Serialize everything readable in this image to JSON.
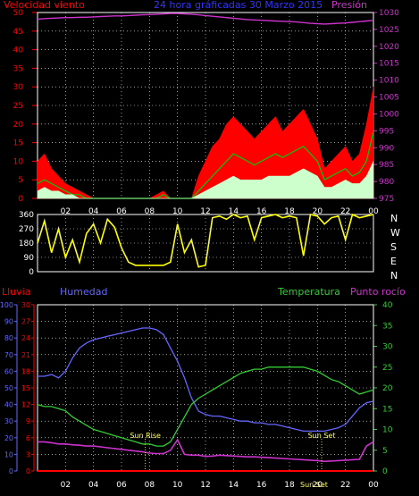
{
  "colors": {
    "wind": "#ff0000",
    "gust": "#ff0000",
    "wind_avg": "#ffffff",
    "wind_green": "#00cc00",
    "pressure": "#cc33cc",
    "title": "#3333ff",
    "winddir": "#ffff00",
    "rain": "#ff0000",
    "humidity": "#6666ff",
    "temperature": "#33cc33",
    "dewpoint": "#cc33cc",
    "axis": "#ffffff",
    "grid": "#ffffff",
    "sun": "#ffff66"
  },
  "chart_data": [
    {
      "type": "line",
      "title": "24 hora gráficadas  30 Marzo 2015",
      "left_label": "Velocidad viento",
      "right_label": "Presión",
      "x_ticks": [
        "02",
        "04",
        "06",
        "08",
        "10",
        "12",
        "14",
        "16",
        "18",
        "20",
        "22",
        "00"
      ],
      "ylim_left": [
        0,
        50
      ],
      "ylim_right": [
        975,
        1030
      ],
      "yticks_left": [
        "0",
        "5",
        "10",
        "15",
        "20",
        "25",
        "30",
        "35",
        "40",
        "45",
        "50"
      ],
      "yticks_right": [
        "975",
        "980",
        "985",
        "990",
        "995",
        "1000",
        "1005",
        "1010",
        "1015",
        "1020",
        "1025",
        "1030"
      ],
      "hours": [
        0,
        0.5,
        1,
        1.5,
        2,
        2.5,
        3,
        3.5,
        4,
        4.5,
        5,
        5.5,
        6,
        6.5,
        7,
        7.5,
        8,
        8.5,
        9,
        9.5,
        10,
        10.5,
        11,
        11.5,
        12,
        12.5,
        13,
        13.5,
        14,
        14.5,
        15,
        15.5,
        16,
        16.5,
        17,
        17.5,
        18,
        18.5,
        19,
        19.5,
        20,
        20.5,
        21,
        21.5,
        22,
        22.5,
        23,
        23.5,
        24
      ],
      "series": [
        {
          "name": "Racha",
          "values": [
            10,
            12,
            8,
            6,
            4,
            3,
            2,
            1,
            0,
            0,
            0,
            0,
            0,
            0,
            0,
            0,
            0,
            1,
            2,
            0,
            0,
            0,
            0,
            6,
            10,
            14,
            16,
            20,
            22,
            20,
            18,
            16,
            18,
            20,
            22,
            18,
            20,
            22,
            24,
            20,
            16,
            8,
            10,
            12,
            14,
            10,
            12,
            20,
            30
          ]
        },
        {
          "name": "Velocidad",
          "values": [
            4,
            5,
            4,
            3,
            2,
            1,
            1,
            0,
            0,
            0,
            0,
            0,
            0,
            0,
            0,
            0,
            0,
            0,
            1,
            0,
            0,
            0,
            0,
            2,
            4,
            6,
            8,
            10,
            12,
            11,
            10,
            9,
            10,
            11,
            12,
            11,
            12,
            13,
            14,
            12,
            10,
            5,
            6,
            7,
            8,
            6,
            7,
            10,
            18
          ]
        },
        {
          "name": "Media",
          "values": [
            2,
            3,
            2,
            2,
            1,
            1,
            0,
            0,
            0,
            0,
            0,
            0,
            0,
            0,
            0,
            0,
            0,
            0,
            0,
            0,
            0,
            0,
            0,
            1,
            2,
            3,
            4,
            5,
            6,
            5,
            5,
            5,
            5,
            6,
            6,
            6,
            6,
            7,
            8,
            7,
            6,
            3,
            3,
            4,
            5,
            4,
            4,
            6,
            10
          ]
        },
        {
          "name": "Presión",
          "values": [
            1028,
            1028.2,
            1028.3,
            1028.4,
            1028.5,
            1028.5,
            1028.6,
            1028.6,
            1028.7,
            1028.8,
            1028.9,
            1029,
            1029,
            1029.1,
            1029.2,
            1029.3,
            1029.4,
            1029.5,
            1029.6,
            1029.7,
            1029.7,
            1029.6,
            1029.5,
            1029.3,
            1029.1,
            1028.9,
            1028.7,
            1028.5,
            1028.3,
            1028.1,
            1027.9,
            1027.8,
            1027.7,
            1027.6,
            1027.5,
            1027.4,
            1027.3,
            1027.2,
            1027.0,
            1026.8,
            1026.7,
            1026.6,
            1026.7,
            1026.8,
            1026.9,
            1027.1,
            1027.3,
            1027.5,
            1027.7
          ]
        }
      ]
    },
    {
      "type": "line",
      "title": "",
      "left_ticks": [
        "0",
        "90",
        "180",
        "270",
        "360"
      ],
      "right_labels": [
        "N",
        "W",
        "S",
        "E",
        "N"
      ],
      "ylim": [
        0,
        360
      ],
      "hours": [
        0,
        0.5,
        1,
        1.5,
        2,
        2.5,
        3,
        3.5,
        4,
        4.5,
        5,
        5.5,
        6,
        6.5,
        7,
        7.5,
        8,
        8.5,
        9,
        9.5,
        10,
        10.5,
        11,
        11.5,
        12,
        12.5,
        13,
        13.5,
        14,
        14.5,
        15,
        15.5,
        16,
        16.5,
        17,
        17.5,
        18,
        18.5,
        19,
        19.5,
        20,
        20.5,
        21,
        21.5,
        22,
        22.5,
        23,
        23.5,
        24
      ],
      "series": [
        {
          "name": "Dirección",
          "values": [
            180,
            320,
            120,
            270,
            90,
            200,
            60,
            240,
            300,
            180,
            330,
            280,
            150,
            60,
            40,
            40,
            40,
            40,
            40,
            60,
            300,
            120,
            200,
            30,
            40,
            340,
            350,
            330,
            360,
            340,
            350,
            200,
            340,
            350,
            360,
            340,
            350,
            340,
            100,
            360,
            350,
            300,
            340,
            350,
            200,
            360,
            340,
            350,
            360
          ]
        }
      ]
    },
    {
      "type": "line",
      "legend": [
        "Lluvia",
        "Humedad",
        "Temperatura",
        "Punto rocío"
      ],
      "ylim_humidity": [
        0,
        100
      ],
      "ylim_rain": [
        0,
        30
      ],
      "ylim_temp": [
        0,
        40
      ],
      "yticks_humidity": [
        "0",
        "10",
        "20",
        "30",
        "40",
        "50",
        "60",
        "70",
        "80",
        "90",
        "100"
      ],
      "yticks_rain": [
        "0",
        "3",
        "6",
        "9",
        "12",
        "15",
        "18",
        "21",
        "24",
        "27",
        "30"
      ],
      "yticks_temp": [
        "0",
        "5",
        "10",
        "15",
        "20",
        "25",
        "30",
        "35",
        "40"
      ],
      "x_ticks": [
        "02",
        "04",
        "06",
        "08",
        "10",
        "12",
        "14",
        "16",
        "18",
        "20",
        "22",
        "00"
      ],
      "annotations": [
        {
          "text": "Sun Rise",
          "hour": 7.7,
          "value_temp": 8
        },
        {
          "text": "Sun Set",
          "hour": 20.3,
          "value_temp": 8
        }
      ],
      "bottom_label": "Sun Set",
      "hours": [
        0,
        0.5,
        1,
        1.5,
        2,
        2.5,
        3,
        3.5,
        4,
        4.5,
        5,
        5.5,
        6,
        6.5,
        7,
        7.5,
        8,
        8.5,
        9,
        9.5,
        10,
        10.5,
        11,
        11.5,
        12,
        12.5,
        13,
        13.5,
        14,
        14.5,
        15,
        15.5,
        16,
        16.5,
        17,
        17.5,
        18,
        18.5,
        19,
        19.5,
        20,
        20.5,
        21,
        21.5,
        22,
        22.5,
        23,
        23.5,
        24
      ],
      "series": [
        {
          "name": "Lluvia",
          "values": [
            0,
            0,
            0,
            0,
            0,
            0,
            0,
            0,
            0,
            0,
            0,
            0,
            0,
            0,
            0,
            0,
            0,
            0,
            0,
            0,
            0,
            0,
            0,
            0,
            0,
            0,
            0,
            0,
            0,
            0,
            0,
            0,
            0,
            0,
            0,
            0,
            0,
            0,
            0,
            0,
            0,
            0,
            0,
            0,
            0,
            0,
            0,
            0,
            0
          ]
        },
        {
          "name": "Humedad",
          "values": [
            57,
            57,
            58,
            56,
            60,
            68,
            74,
            77,
            79,
            80,
            81,
            82,
            83,
            84,
            85,
            86,
            86,
            85,
            82,
            74,
            66,
            56,
            44,
            36,
            34,
            33,
            33,
            32,
            31,
            30,
            30,
            29,
            29,
            28,
            28,
            27,
            26,
            25,
            24,
            24,
            24,
            24,
            25,
            26,
            28,
            33,
            38,
            41,
            42
          ]
        },
        {
          "name": "Temperatura",
          "values": [
            16,
            15.5,
            15.5,
            15,
            14.5,
            13,
            12,
            11,
            10,
            9.5,
            9,
            8.5,
            8,
            7.5,
            7,
            6.5,
            6.5,
            6,
            6,
            7,
            10,
            13,
            16,
            17.5,
            18.5,
            19.5,
            20.5,
            21.5,
            22.5,
            23.5,
            24,
            24.5,
            24.5,
            25,
            25,
            25,
            25,
            25,
            25,
            24.5,
            24,
            23,
            22,
            21.5,
            20.5,
            19.5,
            18.5,
            19,
            19.5
          ]
        },
        {
          "name": "Punto rocío",
          "values": [
            7,
            7,
            6.8,
            6.5,
            6.5,
            6.3,
            6.2,
            6,
            6,
            5.8,
            5.6,
            5.4,
            5.2,
            5,
            4.8,
            4.6,
            4.3,
            4.2,
            4.2,
            5,
            7.5,
            4,
            3.8,
            3.8,
            3.5,
            3.6,
            3.8,
            3.7,
            3.6,
            3.5,
            3.4,
            3.4,
            3.3,
            3.2,
            3.1,
            3,
            2.9,
            2.8,
            2.7,
            2.6,
            2.5,
            2.3,
            2.4,
            2.5,
            2.6,
            2.7,
            2.8,
            6,
            7
          ]
        }
      ]
    }
  ]
}
